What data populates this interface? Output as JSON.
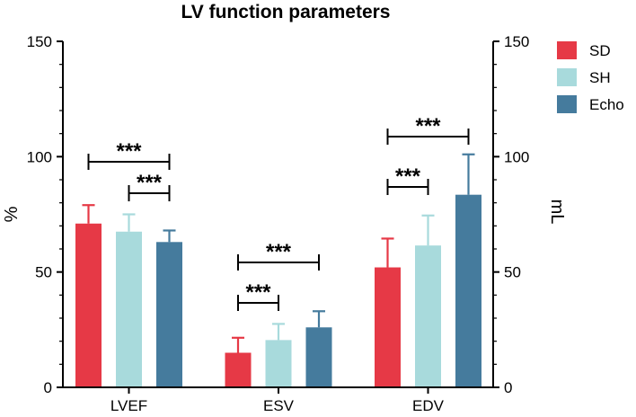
{
  "chart_data": {
    "type": "bar",
    "title": "LV function parameters",
    "categories": [
      "LVEF",
      "ESV",
      "EDV"
    ],
    "series": [
      {
        "name": "SD",
        "color": "#e63946",
        "values": [
          71,
          15,
          52
        ],
        "errors": [
          8,
          6.5,
          12.5
        ]
      },
      {
        "name": "SH",
        "color": "#a8dadc",
        "values": [
          67.5,
          20.5,
          61.5
        ],
        "errors": [
          7.5,
          7,
          13
        ]
      },
      {
        "name": "Echo",
        "color": "#457b9d",
        "values": [
          63,
          26,
          83.5
        ],
        "errors": [
          5,
          7,
          17.5
        ]
      }
    ],
    "ylabel_left": "%",
    "ylabel_right": "mL",
    "ylim": [
      0,
      150
    ],
    "yticks": [
      "0",
      "50",
      "100",
      "150"
    ],
    "legend_position": "top-right",
    "grid": false,
    "significance": [
      {
        "category": 0,
        "from": 0,
        "to": 2,
        "level": 1,
        "label": "***"
      },
      {
        "category": 0,
        "from": 1,
        "to": 2,
        "level": 0,
        "label": "***"
      },
      {
        "category": 1,
        "from": 0,
        "to": 1,
        "level": 0,
        "label": "***"
      },
      {
        "category": 1,
        "from": 0,
        "to": 2,
        "level": 1,
        "label": "***"
      },
      {
        "category": 2,
        "from": 0,
        "to": 1,
        "level": 0,
        "label": "***"
      },
      {
        "category": 2,
        "from": 0,
        "to": 2,
        "level": 1,
        "label": "***"
      }
    ]
  }
}
